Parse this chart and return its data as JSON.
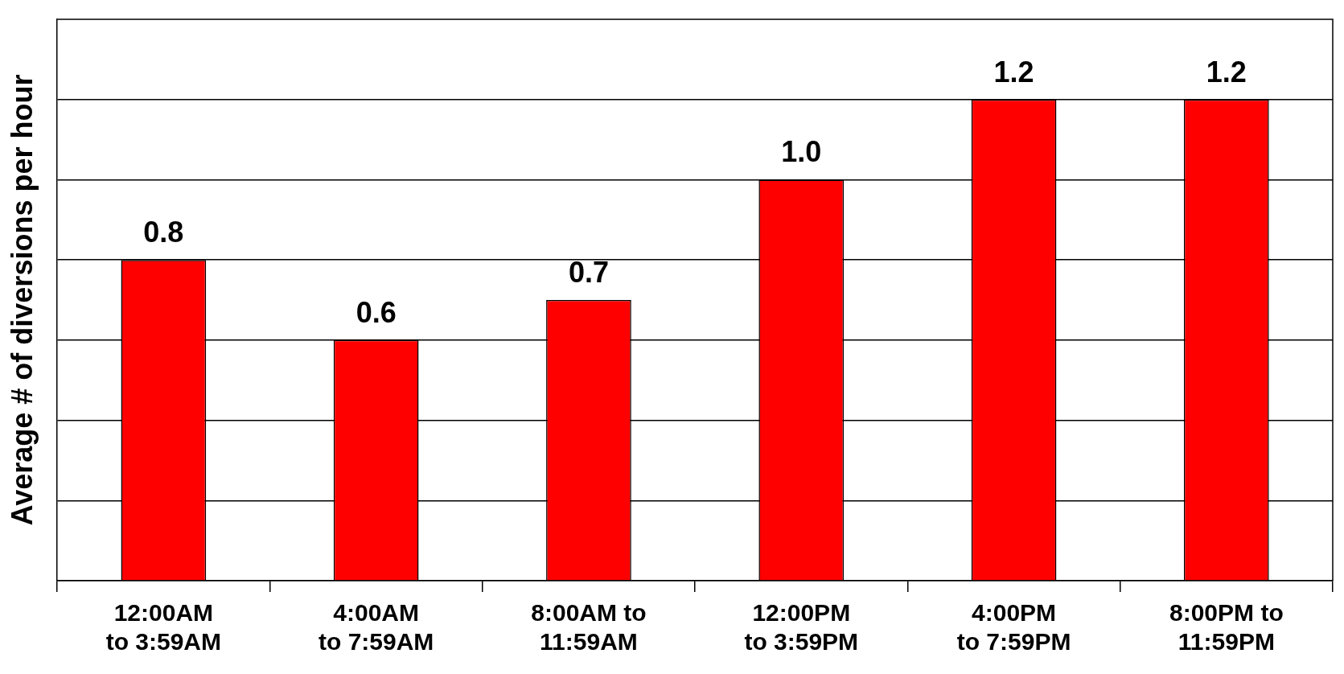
{
  "chart_data": {
    "type": "bar",
    "ylabel": "Average # of diversions per hour",
    "categories": [
      "12:00AM to 3:59AM",
      "4:00AM to 7:59AM",
      "8:00AM to 11:59AM",
      "12:00PM to 3:59PM",
      "4:00PM to 7:59PM",
      "8:00PM to 11:59PM"
    ],
    "values": [
      0.8,
      0.6,
      0.7,
      1.0,
      1.2,
      1.2
    ],
    "value_labels": [
      "0.8",
      "0.6",
      "0.7",
      "1.0",
      "1.2",
      "1.2"
    ],
    "color": "#ff0000",
    "ylim": [
      0,
      1.4
    ],
    "yticks": [
      {
        "value": 0,
        "label": null
      },
      {
        "value": 0.2,
        "label": null
      },
      {
        "value": 0.4,
        "label": null
      },
      {
        "value": 0.6,
        "label": null
      },
      {
        "value": 0.8,
        "label": null
      },
      {
        "value": 1.0,
        "label": null
      },
      {
        "value": 1.2,
        "label": null
      }
    ],
    "grid": "y",
    "tick_labels": "x"
  }
}
